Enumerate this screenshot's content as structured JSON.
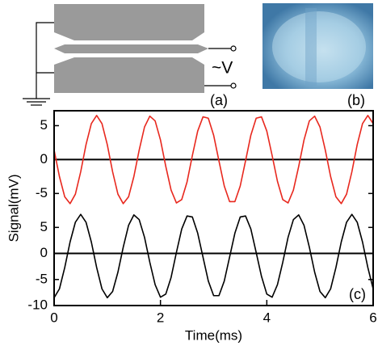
{
  "panels": {
    "a": "(a)",
    "b": "(b)",
    "c": "(c)",
    "source_label": "~V"
  },
  "chart_data": [
    {
      "type": "line",
      "xlim": [
        0,
        6
      ],
      "ylim": [
        -7.7,
        7.2
      ],
      "yticks": [
        -5,
        0,
        5
      ],
      "zero_line": true,
      "x": [
        0,
        0.1,
        0.2,
        0.3,
        0.4,
        0.5,
        0.6,
        0.7,
        0.8,
        0.9,
        1,
        1.1,
        1.2,
        1.3,
        1.4,
        1.5,
        1.6,
        1.7,
        1.8,
        1.9,
        2,
        2.1,
        2.2,
        2.3,
        2.4,
        2.5,
        2.6,
        2.7,
        2.8,
        2.9,
        3,
        3.1,
        3.2,
        3.3,
        3.4,
        3.5,
        3.6,
        3.7,
        3.8,
        3.9,
        4,
        4.1,
        4.2,
        4.3,
        4.4,
        4.5,
        4.6,
        4.7,
        4.8,
        4.9,
        5,
        5.1,
        5.2,
        5.3,
        5.4,
        5.5,
        5.6,
        5.7,
        5.8,
        5.9,
        6
      ],
      "series": [
        {
          "color": "#e8281e",
          "values": [
            1.4,
            -2.5,
            -5.5,
            -6.5,
            -5.1,
            -1.8,
            2.2,
            5.3,
            6.5,
            5.3,
            2.2,
            -1.8,
            -5.1,
            -6.5,
            -5.5,
            -2.5,
            1.4,
            4.8,
            6.4,
            5.7,
            2.9,
            -1.0,
            -4.5,
            -6.4,
            -5.9,
            -3.3,
            0.6,
            4.2,
            6.3,
            6.1,
            3.6,
            -0.2,
            -3.9,
            -6.2,
            -6.2,
            -3.9,
            -0.2,
            3.6,
            6.1,
            6.3,
            4.2,
            0.6,
            -3.2,
            -5.9,
            -6.4,
            -4.5,
            -1.0,
            2.9,
            5.7,
            6.4,
            4.8,
            1.4,
            -2.5,
            -5.5,
            -6.5,
            -5.1,
            -1.8,
            2.2,
            5.3,
            6.5,
            5.3
          ]
        }
      ]
    },
    {
      "type": "line",
      "xlim": [
        0,
        6
      ],
      "xticks": [
        0,
        2,
        4,
        6
      ],
      "ylim": [
        -10,
        8
      ],
      "yticks": [
        -10,
        -5,
        0,
        5
      ],
      "zero_line": true,
      "xlabel": "Time(ms)",
      "ylabel": "Signal(mV)",
      "x": [
        0,
        0.1,
        0.2,
        0.3,
        0.4,
        0.5,
        0.6,
        0.7,
        0.8,
        0.9,
        1,
        1.1,
        1.2,
        1.3,
        1.4,
        1.5,
        1.6,
        1.7,
        1.8,
        1.9,
        2,
        2.1,
        2.2,
        2.3,
        2.4,
        2.5,
        2.6,
        2.7,
        2.8,
        2.9,
        3,
        3.1,
        3.2,
        3.3,
        3.4,
        3.5,
        3.6,
        3.7,
        3.8,
        3.9,
        4,
        4.1,
        4.2,
        4.3,
        4.4,
        4.5,
        4.6,
        4.7,
        4.8,
        4.9,
        5,
        5.1,
        5.2,
        5.3,
        5.4,
        5.5,
        5.6,
        5.7,
        5.8,
        5.9,
        6
      ],
      "series": [
        {
          "color": "#000000",
          "values": [
            -8.5,
            -6.8,
            -2.7,
            2.2,
            6.0,
            7.5,
            6.0,
            2.2,
            -2.7,
            -6.8,
            -8.5,
            -7.3,
            -3.6,
            1.2,
            5.4,
            7.4,
            6.5,
            3.1,
            -1.7,
            -6.0,
            -8.4,
            -7.8,
            -4.6,
            0.2,
            4.7,
            7.2,
            7.0,
            3.9,
            -0.7,
            -5.3,
            -8.1,
            -8.1,
            -5.3,
            -0.7,
            3.9,
            7.0,
            7.2,
            4.7,
            0.2,
            -4.4,
            -7.8,
            -8.4,
            -6.0,
            -1.7,
            3.1,
            6.5,
            7.4,
            5.4,
            1.2,
            -3.6,
            -7.3,
            -8.5,
            -6.8,
            -2.7,
            2.2,
            6.0,
            7.5,
            6.0,
            2.2,
            -2.7,
            -6.8
          ]
        }
      ]
    }
  ]
}
